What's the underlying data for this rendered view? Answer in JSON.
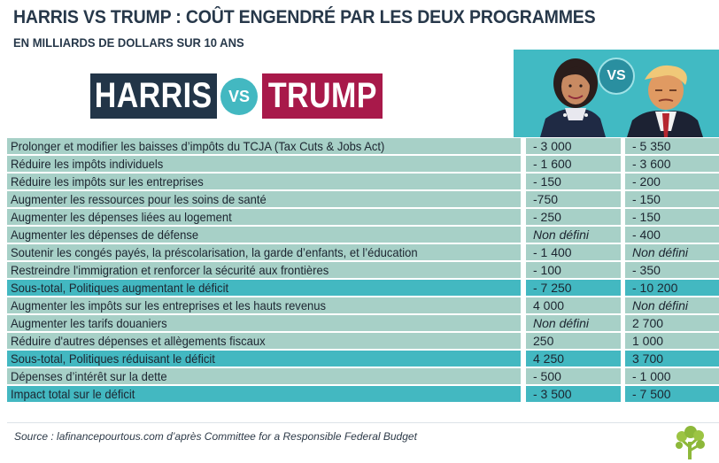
{
  "header": {
    "title": "HARRIS VS TRUMP : COÛT ENGENDRÉ PAR LES DEUX PROGRAMMES",
    "subtitle": "EN MILLIARDS DE DOLLARS SUR 10 ANS"
  },
  "logo": {
    "left_name": "HARRIS",
    "vs": "VS",
    "right_name": "TRUMP"
  },
  "illustration": {
    "vs": "VS"
  },
  "colors": {
    "navy": "#223548",
    "crimson": "#a8194a",
    "teal": "#43b8c1",
    "row_light": "#a7d0c7",
    "row_subtotal": "#43b8c1"
  },
  "table": {
    "rows": [
      {
        "label": "Prolonger et modifier les baisses d’impôts du TCJA (Tax Cuts & Jobs Act)",
        "harris": "- 3 000",
        "trump": "- 5 350",
        "type": "normal"
      },
      {
        "label": "Réduire les impôts individuels",
        "harris": "- 1 600",
        "trump": "- 3 600",
        "type": "normal"
      },
      {
        "label": "Réduire les impôts sur les entreprises",
        "harris": "- 150",
        "trump": "- 200",
        "type": "normal"
      },
      {
        "label": "Augmenter les ressources pour les soins de santé",
        "harris": "-750",
        "trump": "- 150",
        "type": "normal"
      },
      {
        "label": "Augmenter les dépenses liées au logement",
        "harris": "- 250",
        "trump": "- 150",
        "type": "normal"
      },
      {
        "label": "Augmenter les dépenses de défense",
        "harris": "Non défini",
        "trump": "- 400",
        "type": "normal",
        "harris_italic": true
      },
      {
        "label": "Soutenir les congés payés, la préscolarisation, la garde d’enfants, et l’éducation",
        "harris": "- 1 400",
        "trump": "Non défini",
        "type": "normal",
        "trump_italic": true
      },
      {
        "label": "Restreindre l'immigration et renforcer la sécurité aux frontières",
        "harris": "- 100",
        "trump": "- 350",
        "type": "normal"
      },
      {
        "label": "Sous-total, Politiques augmentant le déficit",
        "harris": "- 7 250",
        "trump": "- 10 200",
        "type": "sub"
      },
      {
        "label": "Augmenter les impôts sur les entreprises et les hauts revenus",
        "harris": "4 000",
        "trump": "Non défini",
        "type": "normal",
        "trump_italic": true
      },
      {
        "label": "Augmenter les tarifs douaniers",
        "harris": "Non défini",
        "trump": "2 700",
        "type": "normal",
        "harris_italic": true
      },
      {
        "label": "Réduire d'autres dépenses et allègements fiscaux",
        "harris": "250",
        "trump": "1 000",
        "type": "normal"
      },
      {
        "label": "Sous-total, Politiques réduisant le déficit",
        "harris": "4 250",
        "trump": "3 700",
        "type": "sub"
      },
      {
        "label": "Dépenses d’intérêt sur la dette",
        "harris": "- 500",
        "trump": "- 1 000",
        "type": "normal"
      },
      {
        "label": "Impact total sur le déficit",
        "harris": "- 3 500",
        "trump": "- 7 500",
        "type": "sub"
      }
    ]
  },
  "footer": {
    "source": "Source : lafinancepourtous.com d’après Committee for a Responsible Federal Budget"
  }
}
